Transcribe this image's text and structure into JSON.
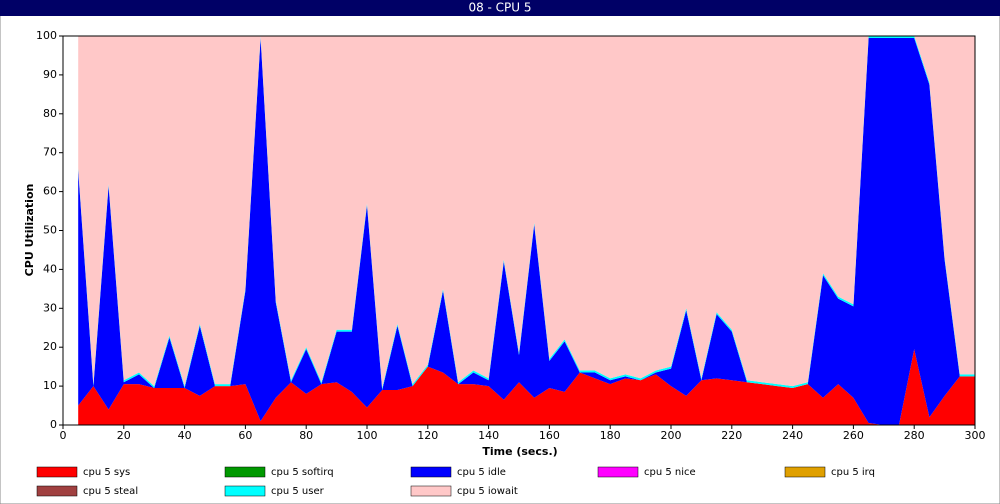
{
  "chart_data": {
    "type": "stacked-area",
    "title": "08 - CPU 5",
    "x_label": "Time (secs.)",
    "y_label": "CPU Utilization",
    "x": [
      5,
      10,
      15,
      20,
      25,
      30,
      35,
      40,
      45,
      50,
      55,
      60,
      65,
      70,
      75,
      80,
      85,
      90,
      95,
      100,
      105,
      110,
      115,
      120,
      125,
      130,
      135,
      140,
      145,
      150,
      155,
      160,
      165,
      170,
      175,
      180,
      185,
      190,
      195,
      200,
      205,
      210,
      215,
      220,
      225,
      230,
      235,
      240,
      245,
      250,
      255,
      260,
      265,
      270,
      275,
      280,
      285,
      290,
      295,
      300
    ],
    "xlim": [
      0,
      300
    ],
    "xticks": [
      0,
      20,
      40,
      60,
      80,
      100,
      120,
      140,
      160,
      180,
      200,
      220,
      240,
      260,
      280,
      300
    ],
    "ylim": [
      0,
      100
    ],
    "yticks": [
      0,
      10,
      20,
      30,
      40,
      50,
      60,
      70,
      80,
      90,
      100
    ],
    "series": [
      {
        "name": "cpu 5 sys",
        "color": "#ff0000",
        "values": [
          5,
          10,
          4,
          10.5,
          10.5,
          9.5,
          9.5,
          9.5,
          7.5,
          10,
          10,
          10.5,
          1,
          7,
          11,
          8,
          10.5,
          11,
          8.5,
          4.5,
          9,
          9,
          10,
          15,
          13.5,
          10.5,
          10.5,
          10,
          6.5,
          11,
          7,
          9.5,
          8.5,
          13.5,
          12,
          10.5,
          12,
          11.5,
          13,
          10,
          7.5,
          11.5,
          12,
          11.5,
          11,
          10.5,
          10,
          9.5,
          10.5,
          7,
          10.5,
          7,
          0.5,
          0,
          0,
          19.5,
          2,
          7.5,
          12.5,
          12.5
        ]
      },
      {
        "name": "cpu 5 softirq",
        "color": "#009900",
        "values": [
          0,
          0,
          0,
          0,
          0,
          0,
          0,
          0,
          0,
          0,
          0,
          0,
          0,
          0,
          0,
          0,
          0,
          0,
          0,
          0,
          0,
          0,
          0,
          0,
          0,
          0,
          0,
          0,
          0,
          0,
          0,
          0,
          0,
          0,
          0,
          0,
          0,
          0,
          0,
          0,
          0,
          0,
          0,
          0,
          0,
          0,
          0,
          0,
          0,
          0,
          0,
          0,
          0,
          0,
          0,
          0,
          0,
          0,
          0,
          0
        ]
      },
      {
        "name": "cpu 5 idle",
        "color": "#0000ff",
        "values": [
          60.5,
          0,
          57.5,
          0.5,
          2.5,
          0,
          13,
          0,
          18,
          0,
          0,
          24,
          98.5,
          24.5,
          0,
          11.5,
          0,
          13,
          15.5,
          52,
          0,
          16.5,
          0,
          0,
          21,
          0,
          3,
          1.5,
          35.5,
          7,
          44.5,
          7,
          13,
          0,
          1.5,
          1,
          0.5,
          0,
          0.5,
          4.5,
          22,
          0,
          16.5,
          12.5,
          0,
          0,
          0,
          0,
          0,
          31.5,
          22,
          23.5,
          99,
          99.5,
          99.5,
          80,
          85.5,
          35,
          0,
          0
        ]
      },
      {
        "name": "cpu 5 nice",
        "color": "#ff00ff",
        "values": [
          0,
          0,
          0,
          0,
          0,
          0,
          0,
          0,
          0,
          0,
          0,
          0,
          0,
          0,
          0,
          0,
          0,
          0,
          0,
          0,
          0,
          0,
          0,
          0,
          0,
          0,
          0,
          0,
          0,
          0,
          0,
          0,
          0,
          0,
          0,
          0,
          0,
          0,
          0,
          0,
          0,
          0,
          0,
          0,
          0,
          0,
          0,
          0,
          0,
          0,
          0,
          0,
          0,
          0,
          0,
          0,
          0,
          0,
          0,
          0
        ]
      },
      {
        "name": "cpu 5 irq",
        "color": "#e0a000",
        "values": [
          0,
          0,
          0,
          0,
          0,
          0,
          0,
          0,
          0,
          0,
          0,
          0,
          0,
          0,
          0,
          0,
          0,
          0,
          0,
          0,
          0,
          0,
          0,
          0,
          0,
          0,
          0,
          0,
          0,
          0,
          0,
          0,
          0,
          0,
          0,
          0,
          0,
          0,
          0,
          0,
          0,
          0,
          0,
          0,
          0,
          0,
          0,
          0,
          0,
          0,
          0,
          0,
          0,
          0,
          0,
          0,
          0,
          0,
          0,
          0
        ]
      },
      {
        "name": "cpu 5 steal",
        "color": "#a04040",
        "values": [
          0,
          0,
          0,
          0,
          0,
          0,
          0,
          0,
          0,
          0,
          0,
          0,
          0,
          0,
          0,
          0,
          0,
          0,
          0,
          0,
          0,
          0,
          0,
          0,
          0,
          0,
          0,
          0,
          0,
          0,
          0,
          0,
          0,
          0,
          0,
          0,
          0,
          0,
          0,
          0,
          0,
          0,
          0,
          0,
          0,
          0,
          0,
          0,
          0,
          0,
          0,
          0,
          0,
          0,
          0,
          0,
          0,
          0,
          0,
          0
        ]
      },
      {
        "name": "cpu 5 user",
        "color": "#00ffff",
        "values": [
          0.5,
          0.5,
          0.5,
          0.5,
          0.5,
          0.5,
          0.5,
          0.5,
          0.5,
          0.5,
          0.5,
          0.5,
          0.5,
          0.5,
          0.5,
          0.5,
          0.5,
          0.5,
          0.5,
          0.5,
          0.5,
          0.5,
          0.5,
          0.5,
          0.5,
          0.5,
          0.5,
          0.5,
          0.5,
          0.5,
          0.5,
          0.5,
          0.5,
          0.5,
          0.5,
          0.5,
          0.5,
          0.5,
          0.5,
          0.5,
          0.5,
          0.5,
          0.5,
          0.5,
          0.5,
          0.5,
          0.5,
          0.5,
          0.5,
          0.5,
          0.5,
          0.5,
          0.5,
          0.5,
          0.5,
          0.5,
          0.5,
          0.5,
          0.5,
          0.5
        ]
      },
      {
        "name": "cpu 5 iowait",
        "color": "#ffc8c8",
        "values": [
          34,
          89.5,
          38,
          88.5,
          86.5,
          90,
          77,
          90,
          74,
          89.5,
          89.5,
          65,
          0,
          68,
          88.5,
          80,
          89,
          75.5,
          75.5,
          43,
          90.5,
          74,
          89.5,
          84.5,
          65,
          89,
          86,
          88,
          57.5,
          81.5,
          48,
          83,
          78,
          86,
          86,
          88,
          87,
          88,
          86,
          85,
          70,
          88,
          71,
          75.5,
          88.5,
          89,
          89.5,
          90,
          89,
          61,
          67,
          69,
          0,
          0,
          0,
          0,
          12,
          57,
          87,
          87
        ]
      }
    ]
  }
}
